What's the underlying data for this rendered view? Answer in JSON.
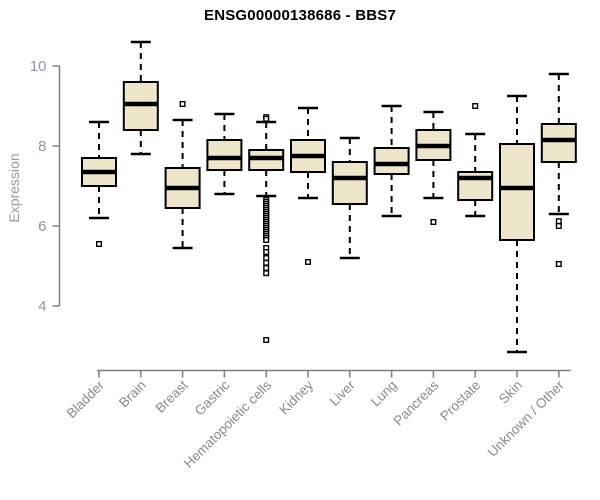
{
  "title": "ENSG00000138686 - BBS7",
  "chart_data": {
    "type": "boxplot",
    "title": "ENSG00000138686 - BBS7",
    "ylabel": "Expression",
    "xlabel": "",
    "yticks": [
      4,
      6,
      8,
      10
    ],
    "ylim": [
      2.5,
      10.8
    ],
    "grid": false,
    "legend": "none",
    "categories": [
      "Bladder",
      "Brain",
      "Breast",
      "Gastric",
      "Hematopoietic cells",
      "Kidney",
      "Liver",
      "Lung",
      "Pancreas",
      "Prostate",
      "Skin",
      "Unknown / Other"
    ],
    "boxes": [
      {
        "category": "Bladder",
        "whisker_low": 6.2,
        "q1": 7.0,
        "median": 7.35,
        "q3": 7.7,
        "whisker_high": 8.6,
        "outliers": [
          5.55
        ]
      },
      {
        "category": "Brain",
        "whisker_low": 7.8,
        "q1": 8.4,
        "median": 9.05,
        "q3": 9.6,
        "whisker_high": 10.6,
        "outliers": []
      },
      {
        "category": "Breast",
        "whisker_low": 5.45,
        "q1": 6.45,
        "median": 6.95,
        "q3": 7.45,
        "whisker_high": 8.65,
        "outliers": [
          9.05
        ]
      },
      {
        "category": "Gastric",
        "whisker_low": 6.8,
        "q1": 7.4,
        "median": 7.7,
        "q3": 8.15,
        "whisker_high": 8.8,
        "outliers": []
      },
      {
        "category": "Hematopoietic cells",
        "whisker_low": 6.75,
        "q1": 7.4,
        "median": 7.7,
        "q3": 7.9,
        "whisker_high": 8.6,
        "outliers": [
          8.72,
          8.68,
          6.65,
          6.6,
          6.55,
          6.5,
          6.45,
          6.4,
          6.35,
          6.3,
          6.25,
          6.2,
          6.15,
          6.1,
          6.05,
          6.0,
          5.95,
          5.9,
          5.85,
          5.8,
          5.75,
          5.7,
          5.65,
          5.45,
          5.35,
          5.2,
          5.08,
          4.95,
          4.82,
          3.15
        ]
      },
      {
        "category": "Kidney",
        "whisker_low": 6.7,
        "q1": 7.35,
        "median": 7.75,
        "q3": 8.15,
        "whisker_high": 8.95,
        "outliers": [
          5.1
        ]
      },
      {
        "category": "Liver",
        "whisker_low": 5.2,
        "q1": 6.55,
        "median": 7.2,
        "q3": 7.6,
        "whisker_high": 8.2,
        "outliers": []
      },
      {
        "category": "Lung",
        "whisker_low": 6.25,
        "q1": 7.3,
        "median": 7.55,
        "q3": 7.95,
        "whisker_high": 9.0,
        "outliers": []
      },
      {
        "category": "Pancreas",
        "whisker_low": 6.7,
        "q1": 7.65,
        "median": 8.0,
        "q3": 8.4,
        "whisker_high": 8.85,
        "outliers": [
          6.1
        ]
      },
      {
        "category": "Prostate",
        "whisker_low": 6.25,
        "q1": 6.65,
        "median": 7.2,
        "q3": 7.35,
        "whisker_high": 8.3,
        "outliers": [
          9.0
        ]
      },
      {
        "category": "Skin",
        "whisker_low": 2.85,
        "q1": 5.65,
        "median": 6.95,
        "q3": 8.05,
        "whisker_high": 9.25,
        "outliers": []
      },
      {
        "category": "Unknown / Other",
        "whisker_low": 6.3,
        "q1": 7.6,
        "median": 8.15,
        "q3": 8.55,
        "whisker_high": 9.8,
        "outliers": [
          6.12,
          6.0,
          5.05
        ]
      }
    ]
  },
  "colors": {
    "background": "#ffffff",
    "box_fill": "#ede6cb",
    "box_stroke": "#000000",
    "median": "#000000",
    "whisker": "#000000",
    "outlier_fill": "#ffffff",
    "axis": "#808080",
    "y_tick_label": "#8d97a5",
    "x_tick_label": "#8a8a8a",
    "axis_title": "#9a9a9a",
    "title": "#000000"
  }
}
